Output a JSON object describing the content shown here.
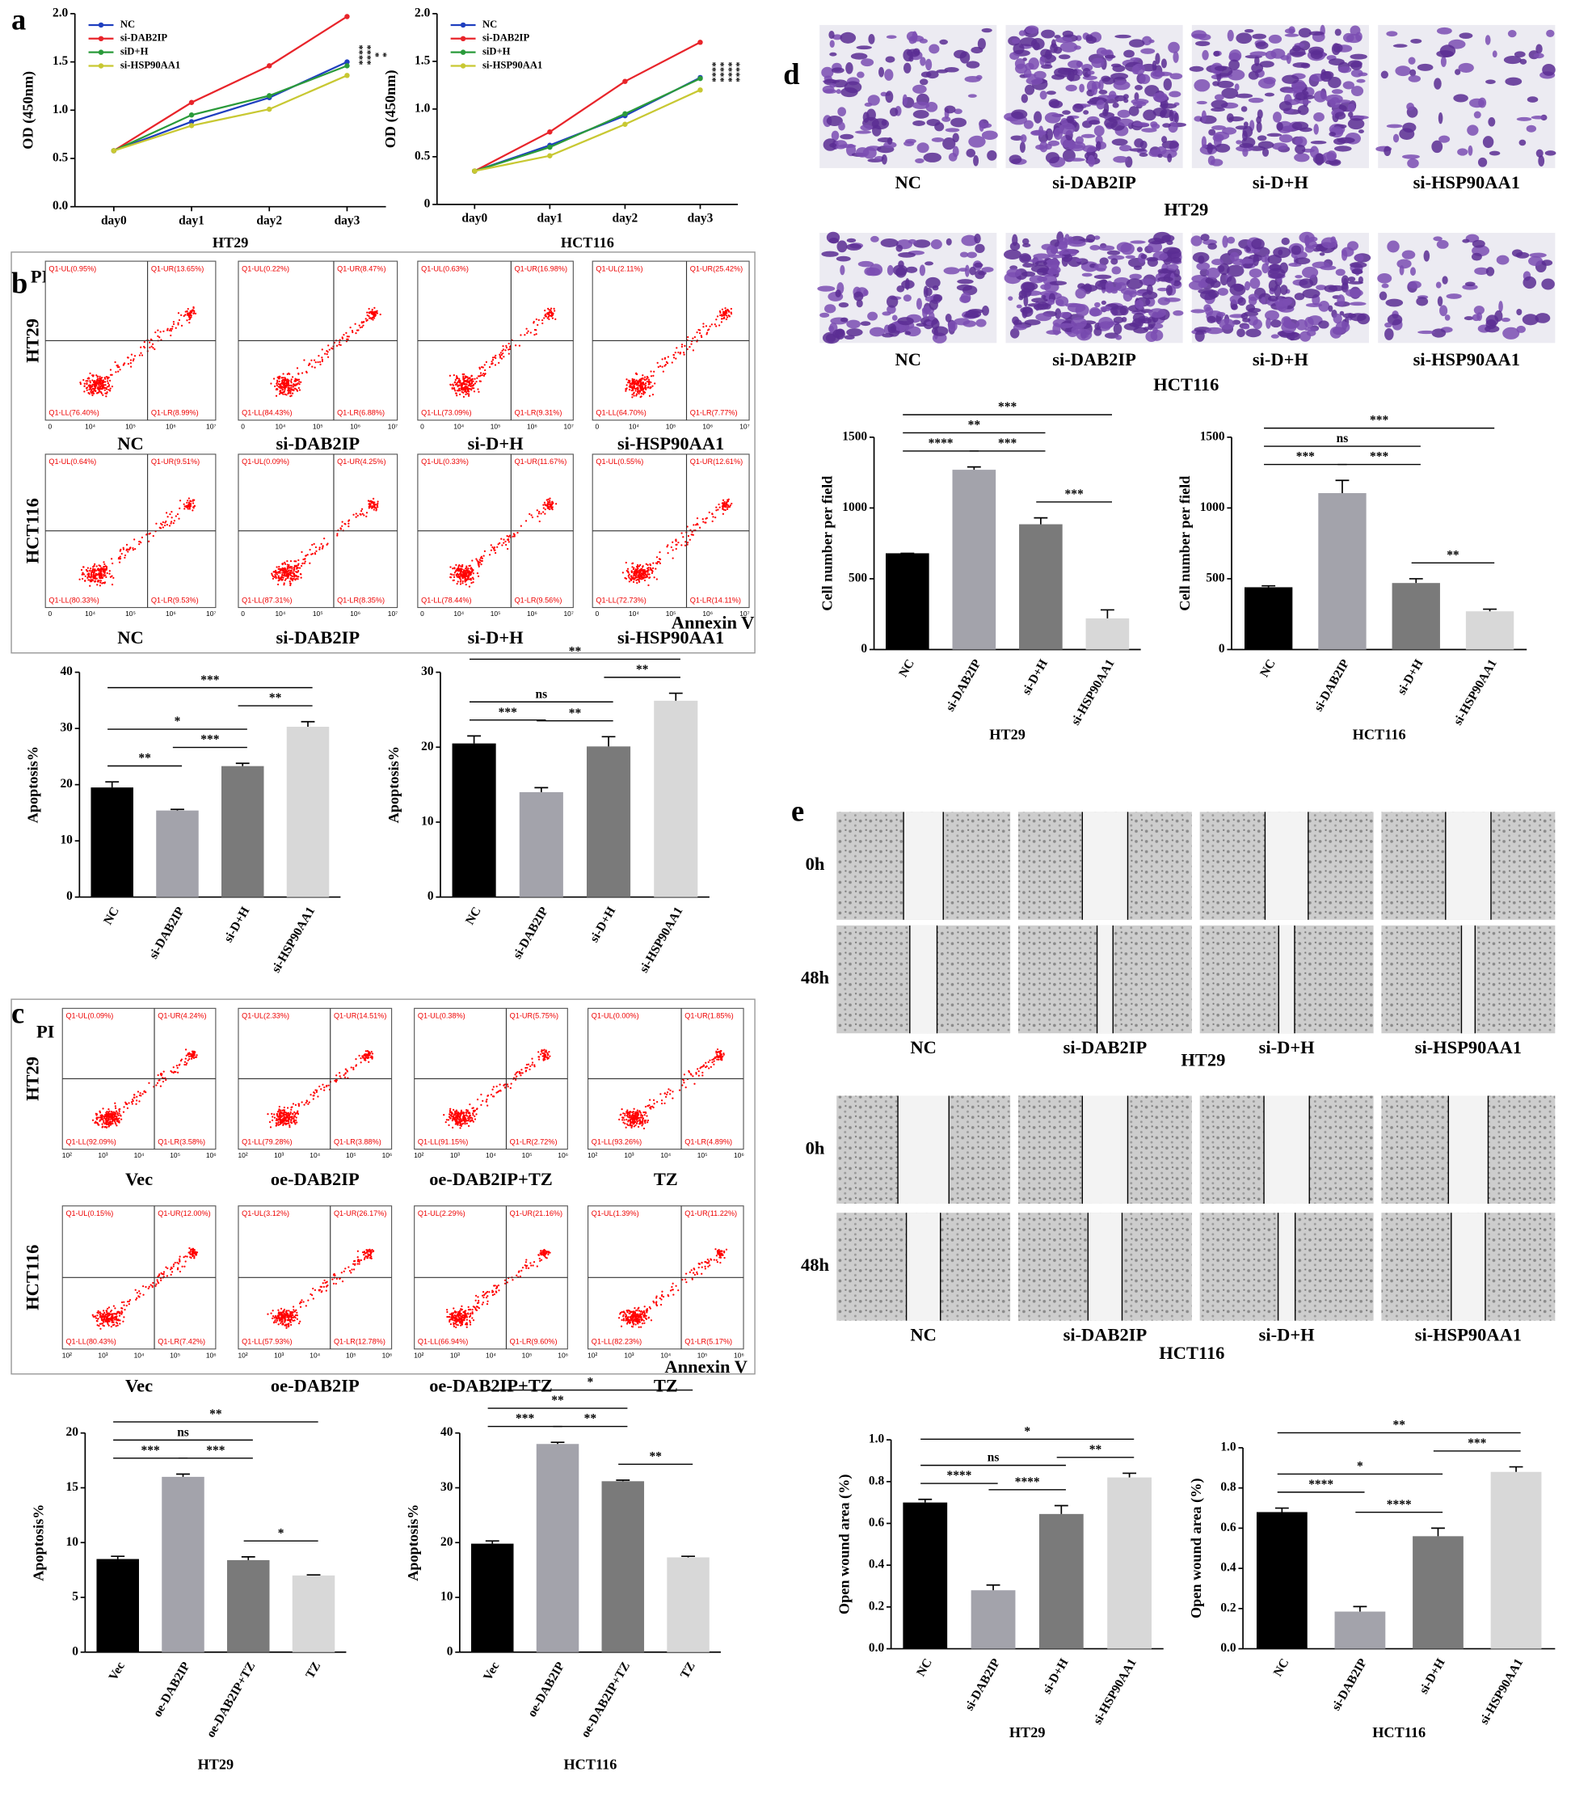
{
  "panel_letters": [
    "a",
    "b",
    "c",
    "d",
    "e"
  ],
  "chart_data": [
    {
      "type": "line",
      "xlabel": "HT29",
      "ylabel": "OD (450nm)",
      "categories": [
        "day0",
        "day1",
        "day2",
        "day3"
      ],
      "ylim": [
        0,
        2
      ],
      "yticks": [
        {
          "value": 0,
          "label": "0.0"
        },
        0.5,
        {
          "value": 1,
          "label": "1.0"
        },
        1.5,
        {
          "value": 2,
          "label": "2.0"
        }
      ],
      "series": [
        {
          "name": "NC",
          "color": "#1f3fbf",
          "values": [
            0.58,
            0.88,
            1.13,
            1.5
          ]
        },
        {
          "name": "si-DAB2IP",
          "color": "#e8242a",
          "values": [
            0.58,
            1.08,
            1.46,
            1.97
          ]
        },
        {
          "name": "siD+H",
          "color": "#2a9a3a",
          "values": [
            0.58,
            0.95,
            1.15,
            1.46
          ]
        },
        {
          "name": "si-HSP90AA1",
          "color": "#c8c832",
          "values": [
            0.58,
            0.84,
            1.01,
            1.36
          ]
        }
      ],
      "annotations": [
        "****",
        "****",
        "*",
        "*"
      ]
    },
    {
      "type": "line",
      "xlabel": "HCT116",
      "ylabel": "OD (450nm)",
      "categories": [
        "day0",
        "day1",
        "day2",
        "day3"
      ],
      "ylim": [
        0,
        2
      ],
      "yticks": [
        0,
        0.5,
        {
          "value": 1,
          "label": "1.0"
        },
        1.5,
        {
          "value": 2,
          "label": "2.0"
        }
      ],
      "series": [
        {
          "name": "NC",
          "color": "#1f3fbf",
          "values": [
            0.35,
            0.62,
            0.93,
            1.33
          ]
        },
        {
          "name": "si-DAB2IP",
          "color": "#e8242a",
          "values": [
            0.35,
            0.76,
            1.29,
            1.7
          ]
        },
        {
          "name": "siD+H",
          "color": "#2a9a3a",
          "values": [
            0.35,
            0.6,
            0.95,
            1.32
          ]
        },
        {
          "name": "si-HSP90AA1",
          "color": "#c8c832",
          "values": [
            0.35,
            0.51,
            0.84,
            1.2
          ]
        }
      ],
      "annotations": [
        "****",
        "****",
        "****",
        "****"
      ]
    },
    {
      "type": "bar",
      "ylabel": "Apoptosis%",
      "categories": [
        "NC",
        "si-DAB2IP",
        "si-D+H",
        "si-HSP90AA1"
      ],
      "values": [
        19.5,
        15.4,
        23.3,
        30.3
      ],
      "errors": [
        1.0,
        0.2,
        0.5,
        0.9
      ],
      "colors": [
        "#000000",
        "#a3a3ab",
        "#7a7a7a",
        "#d8d8d8"
      ],
      "ylim": [
        0,
        40
      ],
      "yticks": [
        0,
        10,
        20,
        30,
        40
      ],
      "brackets": [
        {
          "from": 0,
          "to": 1,
          "label": "**"
        },
        {
          "from": 1,
          "to": 2,
          "label": "***"
        },
        {
          "from": 2,
          "to": 3,
          "label": "**"
        },
        {
          "from": 0,
          "to": 2,
          "label": "*"
        },
        {
          "from": 0,
          "to": 3,
          "label": "***"
        }
      ]
    },
    {
      "type": "bar",
      "ylabel": "Apoptosis%",
      "categories": [
        "NC",
        "si-DAB2IP",
        "si-D+H",
        "si-HSP90AA1"
      ],
      "values": [
        20.5,
        14.0,
        20.1,
        26.2
      ],
      "errors": [
        1.0,
        0.6,
        1.3,
        1.0
      ],
      "colors": [
        "#000000",
        "#a3a3ab",
        "#7a7a7a",
        "#d8d8d8"
      ],
      "ylim": [
        0,
        30
      ],
      "yticks": [
        0,
        10,
        20,
        30
      ],
      "brackets": [
        {
          "from": 0,
          "to": 1,
          "label": "***"
        },
        {
          "from": 1,
          "to": 2,
          "label": "**"
        },
        {
          "from": 2,
          "to": 3,
          "label": "**"
        },
        {
          "from": 0,
          "to": 2,
          "label": "ns"
        },
        {
          "from": 0,
          "to": 3,
          "label": "**"
        }
      ]
    },
    {
      "type": "bar",
      "ylabel": "Apoptosis%",
      "xlabel": "HT29",
      "categories": [
        "Vec",
        "oe-DAB2IP",
        "oe-DAB2IP+TZ",
        "TZ"
      ],
      "values": [
        8.5,
        16.0,
        8.4,
        7.0
      ],
      "errors": [
        0.25,
        0.25,
        0.3,
        0.05
      ],
      "colors": [
        "#000000",
        "#a3a3ab",
        "#7a7a7a",
        "#d8d8d8"
      ],
      "ylim": [
        0,
        20
      ],
      "yticks": [
        0,
        5,
        10,
        15,
        20
      ],
      "brackets": [
        {
          "from": 0,
          "to": 1,
          "label": "***"
        },
        {
          "from": 1,
          "to": 2,
          "label": "***"
        },
        {
          "from": 2,
          "to": 3,
          "label": "*"
        },
        {
          "from": 0,
          "to": 2,
          "label": "ns"
        },
        {
          "from": 0,
          "to": 3,
          "label": "**"
        }
      ]
    },
    {
      "type": "bar",
      "ylabel": "Apoptosis%",
      "xlabel": "HCT116",
      "categories": [
        "Vec",
        "oe-DAB2IP",
        "oe-DAB2IP+TZ",
        "TZ"
      ],
      "values": [
        19.8,
        38.0,
        31.2,
        17.3
      ],
      "errors": [
        0.5,
        0.3,
        0.2,
        0.2
      ],
      "colors": [
        "#000000",
        "#a3a3ab",
        "#7a7a7a",
        "#d8d8d8"
      ],
      "ylim": [
        0,
        40
      ],
      "yticks": [
        0,
        10,
        20,
        30,
        40
      ],
      "brackets": [
        {
          "from": 0,
          "to": 1,
          "label": "***"
        },
        {
          "from": 1,
          "to": 2,
          "label": "**"
        },
        {
          "from": 2,
          "to": 3,
          "label": "**"
        },
        {
          "from": 0,
          "to": 2,
          "label": "**"
        },
        {
          "from": 0,
          "to": 3,
          "label": "*"
        }
      ]
    },
    {
      "type": "bar",
      "ylabel": "Cell number per field",
      "xlabel": "HT29",
      "categories": [
        "NC",
        "si-DAB2IP",
        "si-D+H",
        "si-HSP90AA1"
      ],
      "values": [
        680,
        1270,
        885,
        220
      ],
      "errors": [
        0,
        20,
        45,
        60
      ],
      "colors": [
        "#000000",
        "#a3a3ab",
        "#7a7a7a",
        "#d8d8d8"
      ],
      "ylim": [
        0,
        1500
      ],
      "yticks": [
        0,
        500,
        1000,
        1500
      ],
      "brackets": [
        {
          "from": 0,
          "to": 1,
          "label": "****"
        },
        {
          "from": 1,
          "to": 2,
          "label": "***"
        },
        {
          "from": 2,
          "to": 3,
          "label": "***"
        },
        {
          "from": 0,
          "to": 2,
          "label": "**"
        },
        {
          "from": 0,
          "to": 3,
          "label": "***"
        }
      ]
    },
    {
      "type": "bar",
      "ylabel": "Cell number per field",
      "xlabel": "HCT116",
      "categories": [
        "NC",
        "si-DAB2IP",
        "si-D+H",
        "si-HSP90AA1"
      ],
      "values": [
        440,
        1105,
        470,
        270
      ],
      "errors": [
        10,
        90,
        30,
        15
      ],
      "colors": [
        "#000000",
        "#a3a3ab",
        "#7a7a7a",
        "#d8d8d8"
      ],
      "ylim": [
        0,
        1500
      ],
      "yticks": [
        0,
        500,
        1000,
        1500
      ],
      "brackets": [
        {
          "from": 0,
          "to": 1,
          "label": "***"
        },
        {
          "from": 1,
          "to": 2,
          "label": "***"
        },
        {
          "from": 2,
          "to": 3,
          "label": "**"
        },
        {
          "from": 0,
          "to": 2,
          "label": "ns"
        },
        {
          "from": 0,
          "to": 3,
          "label": "***"
        }
      ]
    },
    {
      "type": "bar",
      "ylabel": "Open wound area (%)",
      "xlabel": "HT29",
      "categories": [
        "NC",
        "si-DAB2IP",
        "si-D+H",
        "si-HSP90AA1"
      ],
      "values": [
        0.7,
        0.28,
        0.645,
        0.82
      ],
      "errors": [
        0.015,
        0.025,
        0.04,
        0.02
      ],
      "colors": [
        "#000000",
        "#a3a3ab",
        "#7a7a7a",
        "#d8d8d8"
      ],
      "ylim": [
        0,
        1
      ],
      "yticks": [
        {
          "value": 0,
          "label": "0.0"
        },
        0.2,
        0.4,
        0.6,
        0.8,
        {
          "value": 1,
          "label": "1.0"
        }
      ],
      "brackets": [
        {
          "from": 0,
          "to": 1,
          "label": "****"
        },
        {
          "from": 1,
          "to": 2,
          "label": "****"
        },
        {
          "from": 2,
          "to": 3,
          "label": "**"
        },
        {
          "from": 0,
          "to": 2,
          "label": "ns"
        },
        {
          "from": 0,
          "to": 3,
          "label": "*"
        }
      ]
    },
    {
      "type": "bar",
      "ylabel": "Open wound area (%)",
      "xlabel": "HCT116",
      "categories": [
        "NC",
        "si-DAB2IP",
        "si-D+H",
        "si-HSP90AA1"
      ],
      "values": [
        0.68,
        0.185,
        0.56,
        0.88
      ],
      "errors": [
        0.02,
        0.025,
        0.04,
        0.025
      ],
      "colors": [
        "#000000",
        "#a3a3ab",
        "#7a7a7a",
        "#d8d8d8"
      ],
      "ylim": [
        0,
        1
      ],
      "yticks": [
        {
          "value": 0,
          "label": "0.0"
        },
        0.2,
        0.4,
        0.6,
        0.8,
        {
          "value": 1,
          "label": "1.0"
        }
      ],
      "brackets": [
        {
          "from": 0,
          "to": 1,
          "label": "****"
        },
        {
          "from": 1,
          "to": 2,
          "label": "****"
        },
        {
          "from": 2,
          "to": 3,
          "label": "***"
        },
        {
          "from": 0,
          "to": 2,
          "label": "*"
        },
        {
          "from": 0,
          "to": 3,
          "label": "**"
        }
      ]
    }
  ],
  "flow": [
    {
      "y_label": "PI",
      "x_label": "Annexin V",
      "axis_ticks": [
        "0",
        "10⁴",
        "10⁵",
        "10⁶",
        "10⁷"
      ],
      "rows": [
        {
          "name": "HT29",
          "panels": [
            {
              "label": "NC",
              "q": [
                "Q1-UL(0.95%)",
                "Q1-UR(13.65%)",
                "Q1-LL(76.40%)",
                "Q1-LR(8.99%)"
              ]
            },
            {
              "label": "si-DAB2IP",
              "q": [
                "Q1-UL(0.22%)",
                "Q1-UR(8.47%)",
                "Q1-LL(84.43%)",
                "Q1-LR(6.88%)"
              ]
            },
            {
              "label": "si-D+H",
              "q": [
                "Q1-UL(0.63%)",
                "Q1-UR(16.98%)",
                "Q1-LL(73.09%)",
                "Q1-LR(9.31%)"
              ]
            },
            {
              "label": "si-HSP90AA1",
              "q": [
                "Q1-UL(2.11%)",
                "Q1-UR(25.42%)",
                "Q1-LL(64.70%)",
                "Q1-LR(7.77%)"
              ]
            }
          ]
        },
        {
          "name": "HCT116",
          "panels": [
            {
              "label": "NC",
              "q": [
                "Q1-UL(0.64%)",
                "Q1-UR(9.51%)",
                "Q1-LL(80.33%)",
                "Q1-LR(9.53%)"
              ]
            },
            {
              "label": "si-DAB2IP",
              "q": [
                "Q1-UL(0.09%)",
                "Q1-UR(4.25%)",
                "Q1-LL(87.31%)",
                "Q1-LR(8.35%)"
              ]
            },
            {
              "label": "si-D+H",
              "q": [
                "Q1-UL(0.33%)",
                "Q1-UR(11.67%)",
                "Q1-LL(78.44%)",
                "Q1-LR(9.56%)"
              ]
            },
            {
              "label": "si-HSP90AA1",
              "q": [
                "Q1-UL(0.55%)",
                "Q1-UR(12.61%)",
                "Q1-LL(72.73%)",
                "Q1-LR(14.11%)"
              ]
            }
          ]
        }
      ]
    },
    {
      "y_label": "PI",
      "x_label": "Annexin V",
      "axis_ticks": [
        "10²",
        "10³",
        "10⁴",
        "10⁵",
        "10⁶"
      ],
      "rows": [
        {
          "name": "HT29",
          "panels": [
            {
              "label": "Vec",
              "q": [
                "Q1-UL(0.09%)",
                "Q1-UR(4.24%)",
                "Q1-LL(92.09%)",
                "Q1-LR(3.58%)"
              ]
            },
            {
              "label": "oe-DAB2IP",
              "q": [
                "Q1-UL(2.33%)",
                "Q1-UR(14.51%)",
                "Q1-LL(79.28%)",
                "Q1-LR(3.88%)"
              ]
            },
            {
              "label": "oe-DAB2IP+TZ",
              "q": [
                "Q1-UL(0.38%)",
                "Q1-UR(5.75%)",
                "Q1-LL(91.15%)",
                "Q1-LR(2.72%)"
              ]
            },
            {
              "label": "TZ",
              "q": [
                "Q1-UL(0.00%)",
                "Q1-UR(1.85%)",
                "Q1-LL(93.26%)",
                "Q1-LR(4.89%)"
              ]
            }
          ]
        },
        {
          "name": "HCT116",
          "panels": [
            {
              "label": "Vec",
              "q": [
                "Q1-UL(0.15%)",
                "Q1-UR(12.00%)",
                "Q1-LL(80.43%)",
                "Q1-LR(7.42%)"
              ]
            },
            {
              "label": "oe-DAB2IP",
              "q": [
                "Q1-UL(3.12%)",
                "Q1-UR(26.17%)",
                "Q1-LL(57.93%)",
                "Q1-LR(12.78%)"
              ]
            },
            {
              "label": "oe-DAB2IP+TZ",
              "q": [
                "Q1-UL(2.29%)",
                "Q1-UR(21.16%)",
                "Q1-LL(66.94%)",
                "Q1-LR(9.60%)"
              ]
            },
            {
              "label": "TZ",
              "q": [
                "Q1-UL(1.39%)",
                "Q1-UR(11.22%)",
                "Q1-LL(82.23%)",
                "Q1-LR(5.17%)"
              ]
            }
          ]
        }
      ]
    }
  ],
  "images": [
    {
      "rows": [
        {
          "caption": "HT29",
          "labels": [
            "NC",
            "si-DAB2IP",
            "si-D+H",
            "si-HSP90AA1"
          ]
        },
        {
          "caption": "HCT116",
          "labels": [
            "NC",
            "si-DAB2IP",
            "si-D+H",
            "si-HSP90AA1"
          ]
        }
      ]
    },
    {
      "rows": [
        {
          "caption": "HT29",
          "times": [
            "0h",
            "48h"
          ],
          "labels": [
            "NC",
            "si-DAB2IP",
            "si-D+H",
            "si-HSP90AA1"
          ]
        },
        {
          "caption": "HCT116",
          "times": [
            "0h",
            "48h"
          ],
          "labels": [
            "NC",
            "si-DAB2IP",
            "si-D+H",
            "si-HSP90AA1"
          ]
        }
      ]
    }
  ]
}
